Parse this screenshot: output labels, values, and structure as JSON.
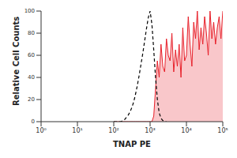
{
  "chart_data": {
    "type": "histogram",
    "x_label": "TNAP PE",
    "y_label": "Relative Cell Counts",
    "log": "x",
    "grid": false,
    "xlim": [
      1,
      100000
    ],
    "xticks": [
      {
        "value": 1,
        "label": "10⁰"
      },
      {
        "value": 10,
        "label": "10¹"
      },
      {
        "value": 100,
        "label": "10²"
      },
      {
        "value": 1000,
        "label": "10³"
      },
      {
        "value": 10000,
        "label": "10⁴"
      },
      {
        "value": 100000,
        "label": "10⁵"
      }
    ],
    "ylim": [
      0,
      100
    ],
    "yticks": [
      0,
      20,
      40,
      60,
      80,
      100
    ],
    "x": [
      100,
      112,
      126,
      141,
      158,
      178,
      200,
      224,
      251,
      282,
      316,
      355,
      398,
      447,
      501,
      562,
      631,
      708,
      794,
      891,
      1000,
      1122,
      1259,
      1413,
      1585,
      1778,
      1995,
      2239,
      2512,
      2818,
      3162,
      3548,
      3981,
      4467,
      5012,
      5623,
      6310,
      7079,
      7943,
      8913,
      10000,
      11220,
      12589,
      14125,
      15849,
      17783,
      19953,
      22387,
      25119,
      28184,
      31623,
      35481,
      39811,
      44668,
      50119,
      56234,
      63096,
      70795,
      79433,
      89125,
      100000
    ],
    "series": [
      {
        "type": "area",
        "color": "#e8202a",
        "line_style": "solid",
        "values": [
          0,
          0,
          0,
          0,
          0,
          0,
          0,
          0,
          0,
          0,
          0,
          0,
          0,
          0,
          0,
          0,
          0,
          0,
          0,
          0,
          0,
          0,
          5,
          30,
          55,
          40,
          70,
          50,
          45,
          75,
          60,
          55,
          80,
          45,
          65,
          50,
          70,
          40,
          85,
          55,
          60,
          95,
          70,
          50,
          90,
          75,
          100,
          65,
          85,
          70,
          95,
          80,
          60,
          100,
          75,
          90,
          70,
          85,
          95,
          75,
          100
        ]
      },
      {
        "type": "line",
        "color": "#000000",
        "line_style": "dashed",
        "values": [
          0,
          0,
          0,
          0,
          0,
          1,
          2,
          4,
          6,
          9,
          13,
          18,
          25,
          33,
          42,
          52,
          62,
          73,
          84,
          94,
          100,
          88,
          65,
          40,
          20,
          8,
          3,
          1,
          0,
          0,
          null,
          null,
          null,
          null,
          null,
          null,
          null,
          null,
          null,
          null,
          null,
          null,
          null,
          null,
          null,
          null,
          null,
          null,
          null,
          null,
          null,
          null,
          null,
          null,
          null,
          null,
          null,
          null,
          null,
          null,
          null
        ]
      }
    ]
  }
}
